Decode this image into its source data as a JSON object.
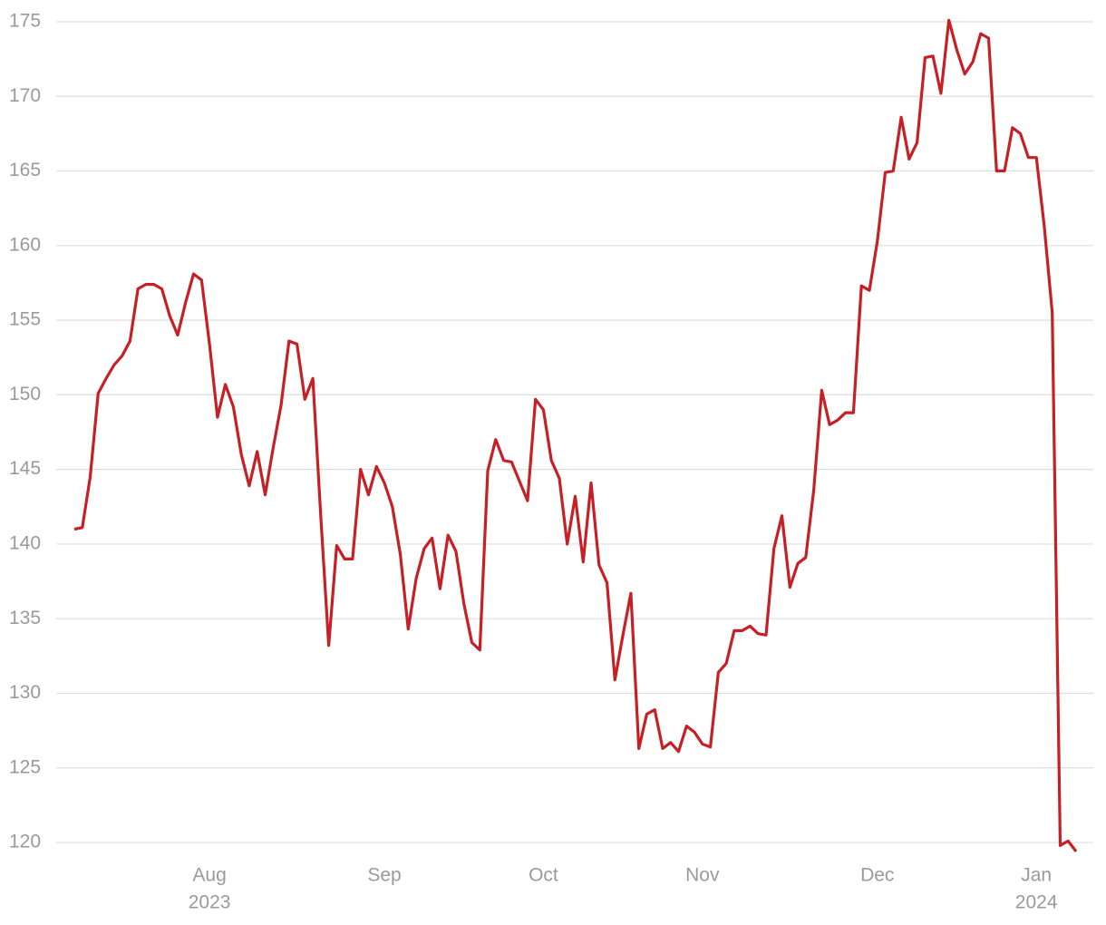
{
  "chart_data": {
    "type": "line",
    "color": "#c62026",
    "grid": true,
    "values": [
      141.0,
      141.1,
      144.5,
      150.1,
      151.1,
      152.0,
      152.6,
      153.6,
      157.1,
      157.4,
      157.4,
      157.1,
      155.3,
      154.0,
      156.2,
      158.1,
      157.7,
      153.4,
      148.5,
      150.7,
      149.2,
      146.0,
      143.9,
      146.2,
      143.3,
      146.4,
      149.3,
      153.6,
      153.4,
      149.7,
      151.1,
      141.8,
      133.2,
      139.9,
      139.0,
      139.0,
      145.0,
      143.3,
      145.2,
      144.1,
      142.5,
      139.3,
      134.3,
      137.7,
      139.7,
      140.4,
      137.0,
      140.6,
      139.5,
      136.0,
      133.4,
      132.9,
      144.9,
      147.0,
      145.6,
      145.5,
      144.2,
      142.9,
      149.7,
      149.0,
      145.6,
      144.4,
      140.0,
      143.2,
      138.8,
      144.1,
      138.6,
      137.4,
      130.9,
      133.9,
      136.7,
      126.3,
      128.6,
      128.9,
      126.3,
      126.7,
      126.1,
      127.8,
      127.4,
      126.6,
      126.4,
      131.4,
      132.0,
      134.2,
      134.2,
      134.5,
      134.0,
      133.9,
      139.7,
      141.9,
      137.1,
      138.7,
      139.1,
      143.6,
      150.3,
      148.0,
      148.3,
      148.8,
      148.8,
      157.3,
      157.0,
      160.3,
      164.9,
      165.0,
      168.6,
      165.8,
      166.9,
      172.6,
      172.7,
      170.2,
      175.1,
      173.1,
      171.5,
      172.3,
      174.2,
      173.9,
      165.0,
      165.0,
      167.9,
      167.5,
      165.9,
      165.9,
      161.3,
      155.5,
      119.8,
      120.1,
      119.4
    ],
    "ylim": [
      119,
      175.6
    ],
    "yticks": [
      120,
      125,
      130,
      135,
      140,
      145,
      150,
      155,
      160,
      165,
      170,
      175
    ],
    "xlim": [
      0,
      126
    ],
    "xticks": [
      {
        "value": 17,
        "label": "Aug"
      },
      {
        "value": 39,
        "label": "Sep"
      },
      {
        "value": 59,
        "label": "Oct"
      },
      {
        "value": 79,
        "label": "Nov"
      },
      {
        "value": 101,
        "label": "Dec"
      },
      {
        "value": 121,
        "label": "Jan"
      }
    ],
    "xtick_years": [
      {
        "value": 17,
        "label": "2023"
      },
      {
        "value": 121,
        "label": "2024"
      }
    ]
  }
}
